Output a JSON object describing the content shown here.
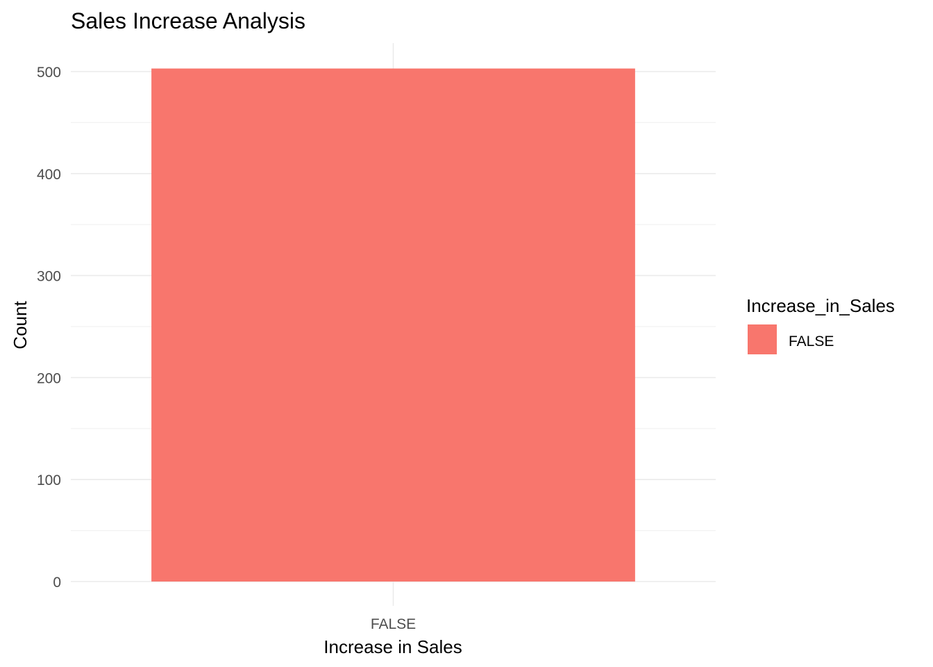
{
  "chart_data": {
    "type": "bar",
    "title": "Sales Increase Analysis",
    "xlabel": "Increase in Sales",
    "ylabel": "Count",
    "categories": [
      "FALSE"
    ],
    "values": [
      503
    ],
    "ylim": [
      0,
      503
    ],
    "yticks": [
      0,
      100,
      200,
      300,
      400,
      500
    ],
    "grid": true,
    "legend": {
      "title": "Increase_in_Sales",
      "placement": "right",
      "entries": [
        {
          "label": "FALSE",
          "color": "#F8766D"
        }
      ]
    },
    "colors": {
      "bar": "#F8766D",
      "grid_major": "#ebebeb",
      "grid_minor": "#f2f2f2"
    }
  }
}
